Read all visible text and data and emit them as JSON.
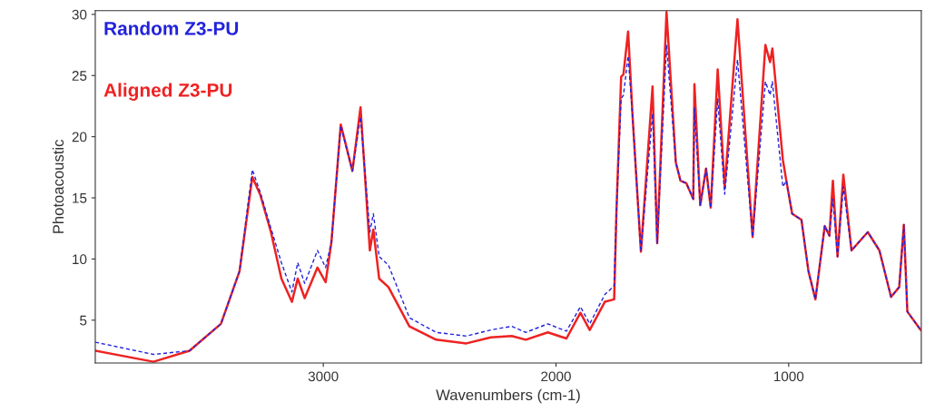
{
  "chart_data": {
    "type": "line",
    "xlabel": "Wavenumbers (cm-1)",
    "ylabel": "Photoacoustic",
    "x": [
      3980,
      3730,
      3575,
      3440,
      3360,
      3305,
      3270,
      3225,
      3180,
      3135,
      3110,
      3080,
      3025,
      2990,
      2965,
      2925,
      2875,
      2840,
      2800,
      2785,
      2760,
      2720,
      2630,
      2515,
      2385,
      2280,
      2190,
      2130,
      2035,
      1955,
      1895,
      1855,
      1790,
      1750,
      1740,
      1720,
      1710,
      1690,
      1670,
      1635,
      1585,
      1565,
      1525,
      1485,
      1465,
      1440,
      1410,
      1405,
      1380,
      1355,
      1335,
      1305,
      1275,
      1220,
      1155,
      1100,
      1080,
      1070,
      1025,
      1010,
      985,
      945,
      915,
      885,
      845,
      825,
      810,
      790,
      765,
      730,
      660,
      610,
      560,
      525,
      505,
      490,
      433
    ],
    "series": [
      {
        "name": "Random Z3-PU",
        "color": "#2222dd",
        "line_style": "dashed",
        "values": [
          3.2,
          2.2,
          2.5,
          4.7,
          9.0,
          17.3,
          15.4,
          12.5,
          9.7,
          7.3,
          9.7,
          8.0,
          10.7,
          9.3,
          11.4,
          20.9,
          17.2,
          21.6,
          12.2,
          13.7,
          10.2,
          9.5,
          5.2,
          4.0,
          3.7,
          4.2,
          4.5,
          4.0,
          4.7,
          4.1,
          6.1,
          4.7,
          7.1,
          7.8,
          14.0,
          23.1,
          23.4,
          26.6,
          21.4,
          10.6,
          21.9,
          11.3,
          27.5,
          17.9,
          16.4,
          16.2,
          14.9,
          22.4,
          14.4,
          17.4,
          14.2,
          23.1,
          15.3,
          26.3,
          11.8,
          24.5,
          23.4,
          24.5,
          15.9,
          16.4,
          13.7,
          13.2,
          9.0,
          6.7,
          12.7,
          11.9,
          14.9,
          10.2,
          15.9,
          10.7,
          12.2,
          10.7,
          6.9,
          7.7,
          12.8,
          5.7,
          4.2
        ]
      },
      {
        "name": "Aligned Z3-PU",
        "color": "#ee2222",
        "values": [
          2.5,
          1.6,
          2.5,
          4.7,
          9.0,
          16.7,
          15.2,
          12.2,
          8.4,
          6.5,
          8.4,
          6.8,
          9.3,
          8.1,
          11.4,
          21.0,
          17.2,
          22.4,
          10.7,
          12.4,
          8.4,
          7.7,
          4.5,
          3.4,
          3.1,
          3.6,
          3.7,
          3.4,
          4.0,
          3.5,
          5.6,
          4.2,
          6.5,
          6.7,
          14.0,
          24.9,
          25.1,
          28.6,
          21.4,
          10.6,
          24.1,
          11.3,
          30.2,
          17.9,
          16.4,
          16.2,
          14.9,
          24.3,
          14.4,
          17.4,
          14.2,
          25.5,
          15.9,
          29.6,
          11.8,
          27.5,
          26.1,
          27.2,
          18.1,
          16.4,
          13.7,
          13.2,
          9.0,
          6.7,
          12.7,
          11.9,
          16.4,
          10.2,
          16.9,
          10.7,
          12.2,
          10.7,
          6.9,
          7.7,
          12.8,
          5.7,
          4.2
        ]
      }
    ],
    "xlim": [
      3980,
      430
    ],
    "ylim": [
      1.5,
      30.3
    ],
    "xticks": [
      3000,
      2000,
      1000
    ],
    "yticks": [
      5,
      10,
      15,
      20,
      25,
      30
    ],
    "grid": false,
    "legend": "top left"
  }
}
